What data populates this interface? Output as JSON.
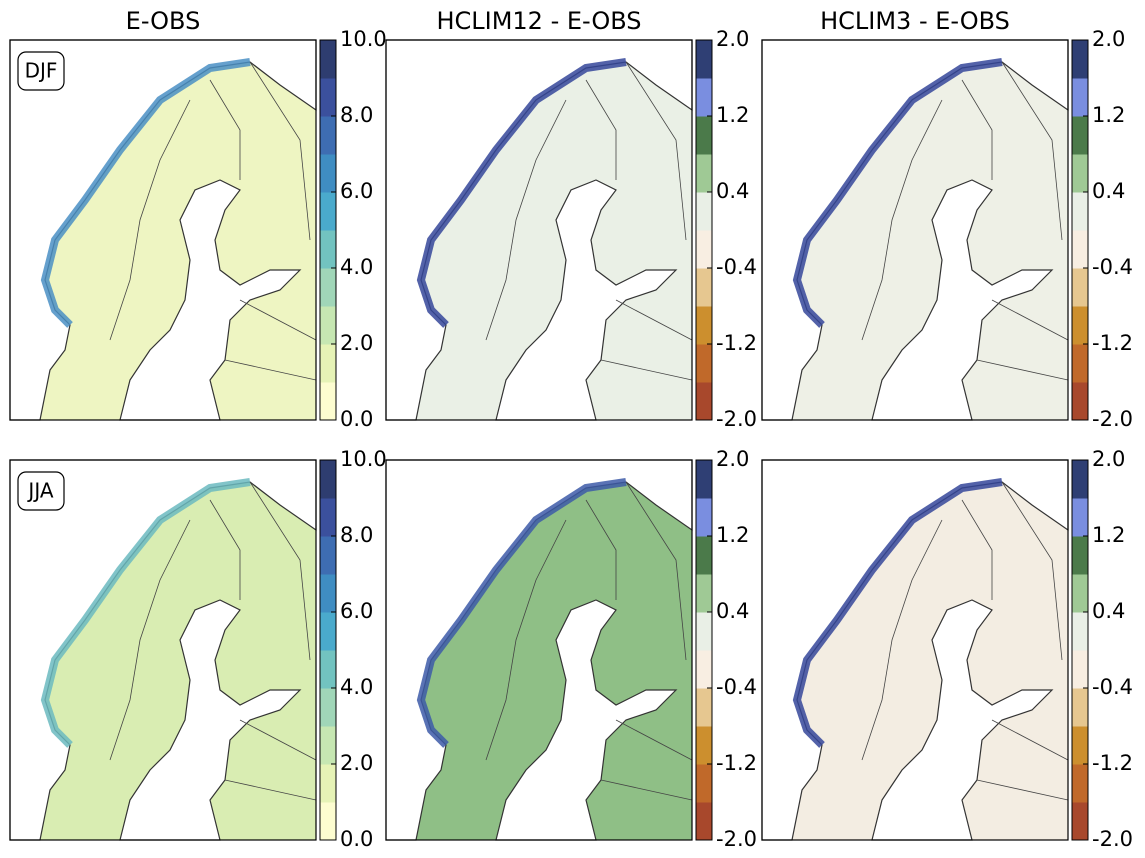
{
  "columns": [
    {
      "title": "E-OBS",
      "colorbar": {
        "lim": [
          0,
          10
        ],
        "ticks": [
          {
            "value": 0,
            "label": "0.0"
          },
          {
            "value": 2,
            "label": "2.0"
          },
          {
            "value": 4,
            "label": "4.0"
          },
          {
            "value": 6,
            "label": "6.0"
          },
          {
            "value": 8,
            "label": "8.0"
          },
          {
            "value": 10,
            "label": "10.0"
          }
        ],
        "colors": [
          "#fdfdd0",
          "#e6f3b6",
          "#c6e7b2",
          "#a0d6b8",
          "#72c3c0",
          "#4aaacc",
          "#3f8dc2",
          "#3e6db2",
          "#3b509d",
          "#2e3d70"
        ]
      }
    },
    {
      "title": "HCLIM12 - E-OBS",
      "colorbar": {
        "lim": [
          -2,
          2
        ],
        "ticks": [
          {
            "value": -2,
            "label": "-2.0"
          },
          {
            "value": -1.2,
            "label": "-1.2"
          },
          {
            "value": -0.4,
            "label": "-0.4"
          },
          {
            "value": 0.4,
            "label": "0.4"
          },
          {
            "value": 1.2,
            "label": "1.2"
          },
          {
            "value": 2,
            "label": "2.0"
          }
        ],
        "colors": [
          "#a8482c",
          "#c0692a",
          "#cc8f2e",
          "#e6c790",
          "#f8eee2",
          "#e9efe6",
          "#9fc995",
          "#4b7a4a",
          "#7a8ee0",
          "#2f3f74"
        ]
      }
    },
    {
      "title": "HCLIM3 - E-OBS",
      "colorbar": {
        "lim": [
          -2,
          2
        ],
        "ticks": [
          {
            "value": -2,
            "label": "-2.0"
          },
          {
            "value": -1.2,
            "label": "-1.2"
          },
          {
            "value": -0.4,
            "label": "-0.4"
          },
          {
            "value": 0.4,
            "label": "0.4"
          },
          {
            "value": 1.2,
            "label": "1.2"
          },
          {
            "value": 2,
            "label": "2.0"
          }
        ],
        "colors": [
          "#a8482c",
          "#c0692a",
          "#cc8f2e",
          "#e6c790",
          "#f8eee2",
          "#e9efe6",
          "#9fc995",
          "#4b7a4a",
          "#7a8ee0",
          "#2f3f74"
        ]
      }
    }
  ],
  "rows": [
    {
      "label": "DJF"
    },
    {
      "label": "JJA"
    }
  ]
}
